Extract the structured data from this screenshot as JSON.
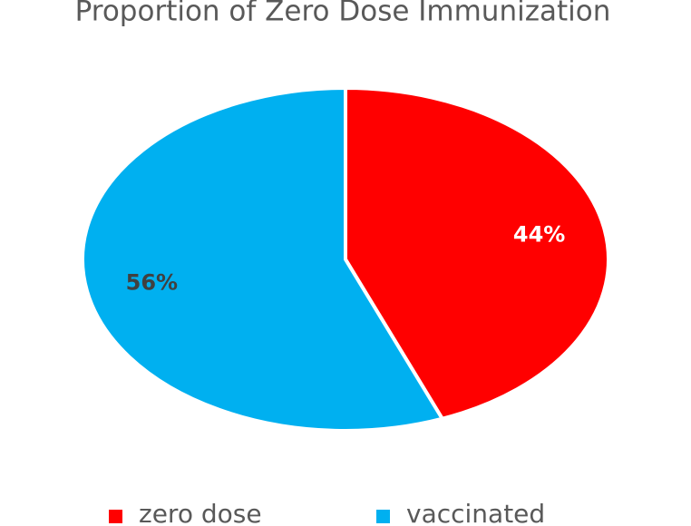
{
  "chart_data": {
    "type": "pie",
    "title": "Proportion of Zero Dose Immunization",
    "categories": [
      "zero dose",
      "vaccinated"
    ],
    "values": [
      44,
      56
    ],
    "value_labels": [
      "44%",
      "56%"
    ],
    "colors": [
      "#ff0000",
      "#00b0f0"
    ],
    "legend": "bottom"
  }
}
